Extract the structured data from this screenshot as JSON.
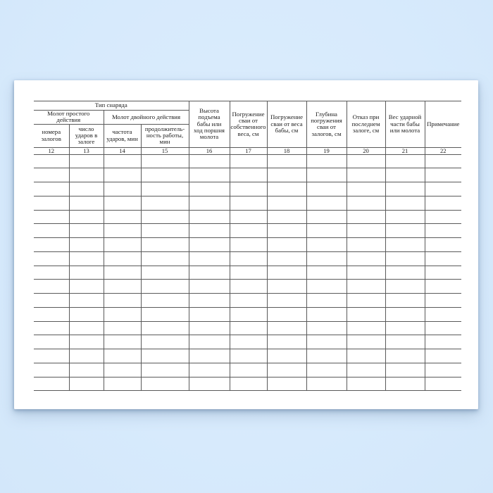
{
  "colors": {
    "background": "#d7eafc",
    "paper": "#ffffff",
    "table_line": "#5a5a5a",
    "text": "#1b1b1b"
  },
  "table": {
    "group_headers": {
      "equipment_type": "Тип снаряда",
      "single_action_hammer": "Молот простого\nдействия",
      "double_action_hammer": "Молот двойного действия"
    },
    "columns": [
      {
        "number": "12",
        "label": "номера\nзалогов"
      },
      {
        "number": "13",
        "label": "число\nударов в\nзалоге"
      },
      {
        "number": "14",
        "label": "частота\nударов, мин"
      },
      {
        "number": "15",
        "label": "продолжитель-\nность работы,\nмин"
      },
      {
        "number": "16",
        "label": "Высота\nподъема\nбабы или\nход поршня\nмолота"
      },
      {
        "number": "17",
        "label": "Погружение\nсваи от\nсобственного\nвеса, см"
      },
      {
        "number": "18",
        "label": "Погружение\nсваи от веса\nбабы, см"
      },
      {
        "number": "19",
        "label": "Глубина\nпогружения\nсваи от\nзалогов, см"
      },
      {
        "number": "20",
        "label": "Отказ при\nпоследнем\nзалоге, см"
      },
      {
        "number": "21",
        "label": "Вес ударной\nчасти бабы\nили молота"
      },
      {
        "number": "22",
        "label": "Примечание"
      }
    ],
    "empty_row_count": 17,
    "empty_cell_value": ""
  }
}
